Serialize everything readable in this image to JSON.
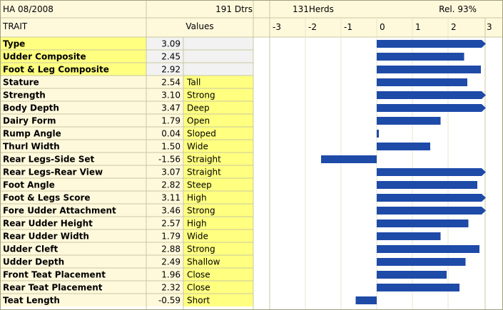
{
  "header": {
    "period": "HA 08/2008",
    "daughters": "191 Dtrs",
    "herds": "131Herds",
    "reliability": "Rel. 93%",
    "trait_col": "TRAIT",
    "values_col": "Values"
  },
  "colors": {
    "bar": "#1e4aa8",
    "trait_highlight": "#ffff80",
    "descriptor_bg": "#ffff80",
    "light_cell": "#fff9dc",
    "value_cell_light": "#f2f2f2",
    "grid_border": "#c8c8a0"
  },
  "chart_data": {
    "type": "bar",
    "orientation": "horizontal",
    "xlim": [
      -3,
      3
    ],
    "x_ticks": [
      "-3",
      "-2",
      "-1",
      "0",
      "1",
      "2",
      "3"
    ],
    "grid": true,
    "categories": [
      "Type",
      "Udder Composite",
      "Foot & Leg Composite",
      "Stature",
      "Strength",
      "Body Depth",
      "Dairy Form",
      "Rump Angle",
      "Thurl Width",
      "Rear Legs-Side Set",
      "Rear Legs-Rear View",
      "Foot Angle",
      "Foot & Legs Score",
      "Fore Udder Attachment",
      "Rear Udder Height",
      "Rear Udder Width",
      "Udder Cleft",
      "Udder Depth",
      "Front Teat Placement",
      "Rear Teat Placement",
      "Teat Length"
    ],
    "values": [
      3.09,
      2.45,
      2.92,
      2.54,
      3.1,
      3.47,
      1.79,
      0.04,
      1.5,
      -1.56,
      3.07,
      2.82,
      3.11,
      3.46,
      2.57,
      1.79,
      2.88,
      2.49,
      1.96,
      2.32,
      -0.59
    ],
    "value_labels": [
      "3.09",
      "2.45",
      "2.92",
      "2.54",
      "3.10",
      "3.47",
      "1.79",
      "0.04",
      "1.50",
      "-1.56",
      "3.07",
      "2.82",
      "3.11",
      "3.46",
      "2.57",
      "1.79",
      "2.88",
      "2.49",
      "1.96",
      "2.32",
      "-0.59"
    ],
    "descriptors": [
      "",
      "",
      "",
      "Tall",
      "Strong",
      "Deep",
      "Open",
      "Sloped",
      "Wide",
      "Straight",
      "Straight",
      "Steep",
      "High",
      "Strong",
      "High",
      "Wide",
      "Strong",
      "Shallow",
      "Close",
      "Close",
      "Short"
    ],
    "composite_rows": 3
  }
}
